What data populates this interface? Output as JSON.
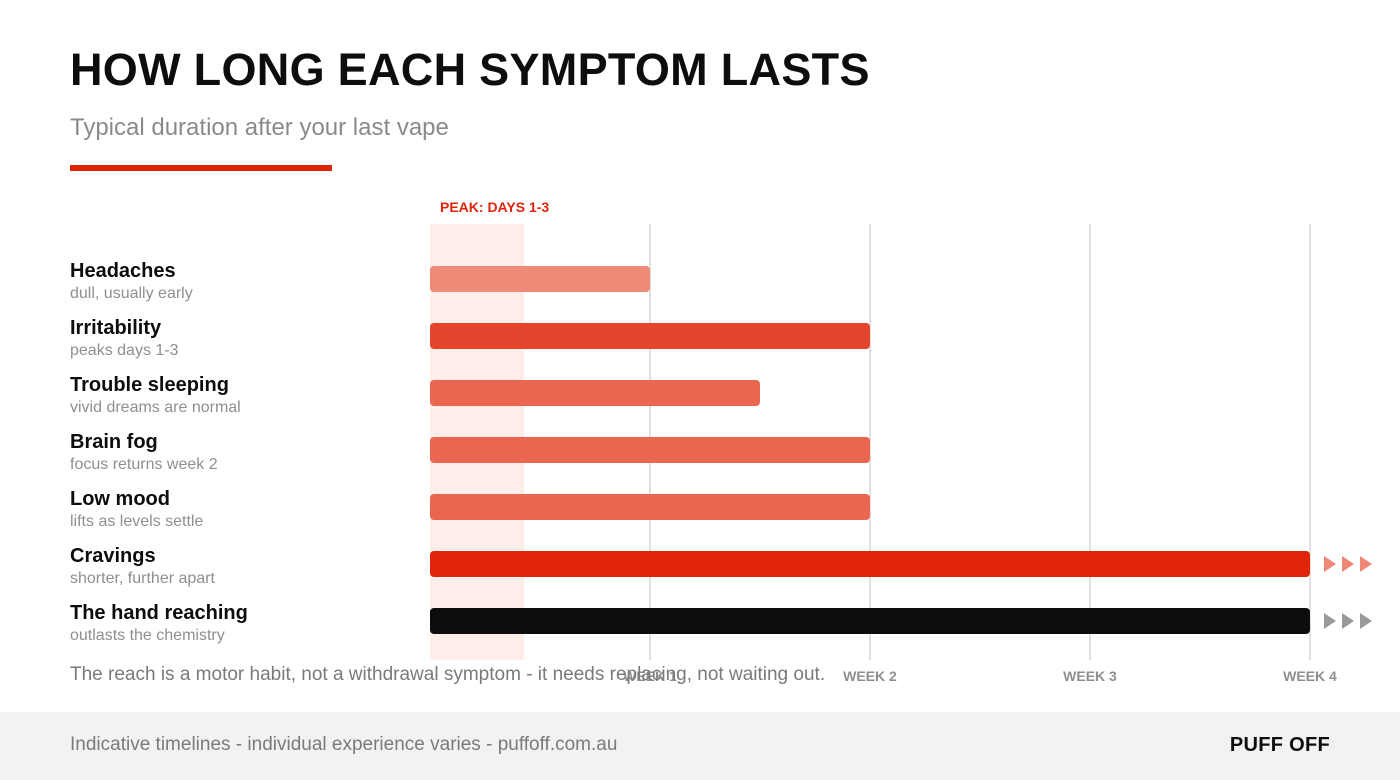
{
  "header": {
    "title": "HOW LONG EACH SYMPTOM LASTS",
    "subtitle": "Typical duration after your last vape"
  },
  "colors": {
    "accent": "#e0240a",
    "light_bar": "#ef8a78",
    "mid_bar": "#eb6650",
    "dark_bar": "#e3462c",
    "habit_bar": "#0d0d0d",
    "peak_band": "#fdeeea",
    "grid": "#d6d6d6"
  },
  "chart_data": {
    "type": "bar",
    "orientation": "horizontal",
    "x_unit": "days",
    "xlim": [
      0,
      28
    ],
    "x_ticks": [
      {
        "value": 7,
        "label": "WEEK 1"
      },
      {
        "value": 14,
        "label": "WEEK 2"
      },
      {
        "value": 21,
        "label": "WEEK 3"
      },
      {
        "value": 28,
        "label": "WEEK 4"
      }
    ],
    "grid": true,
    "peak_band": {
      "from": 0,
      "to": 3,
      "label": "PEAK: DAYS 1-3"
    },
    "symptoms": [
      {
        "name": "Headaches",
        "note": "dull, usually early",
        "start": 0,
        "end": 7,
        "color": "#ef8a78",
        "continues": false
      },
      {
        "name": "Irritability",
        "note": "peaks days 1-3",
        "start": 0,
        "end": 14,
        "color": "#e3462c",
        "continues": false
      },
      {
        "name": "Trouble sleeping",
        "note": "vivid dreams are normal",
        "start": 0,
        "end": 10.5,
        "color": "#eb6650",
        "continues": false
      },
      {
        "name": "Brain fog",
        "note": "focus returns week 2",
        "start": 0,
        "end": 14,
        "color": "#eb6650",
        "continues": false
      },
      {
        "name": "Low mood",
        "note": "lifts as levels settle",
        "start": 0,
        "end": 14,
        "color": "#eb6650",
        "continues": false
      },
      {
        "name": "Cravings",
        "note": "shorter, further apart",
        "start": 0,
        "end": 28,
        "color": "#e0240a",
        "continues": true,
        "arrow_color": "#f08878"
      },
      {
        "name": "The hand reaching",
        "note": "outlasts the chemistry",
        "start": 0,
        "end": 28,
        "color": "#0d0d0d",
        "continues": true,
        "arrow_color": "#9a9a9a"
      }
    ]
  },
  "footnote": "The reach is a motor habit, not a withdrawal symptom - it needs replacing, not waiting out.",
  "footer": {
    "note": "Indicative timelines - individual experience varies  -  puffoff.com.au",
    "brand": "PUFF OFF"
  }
}
